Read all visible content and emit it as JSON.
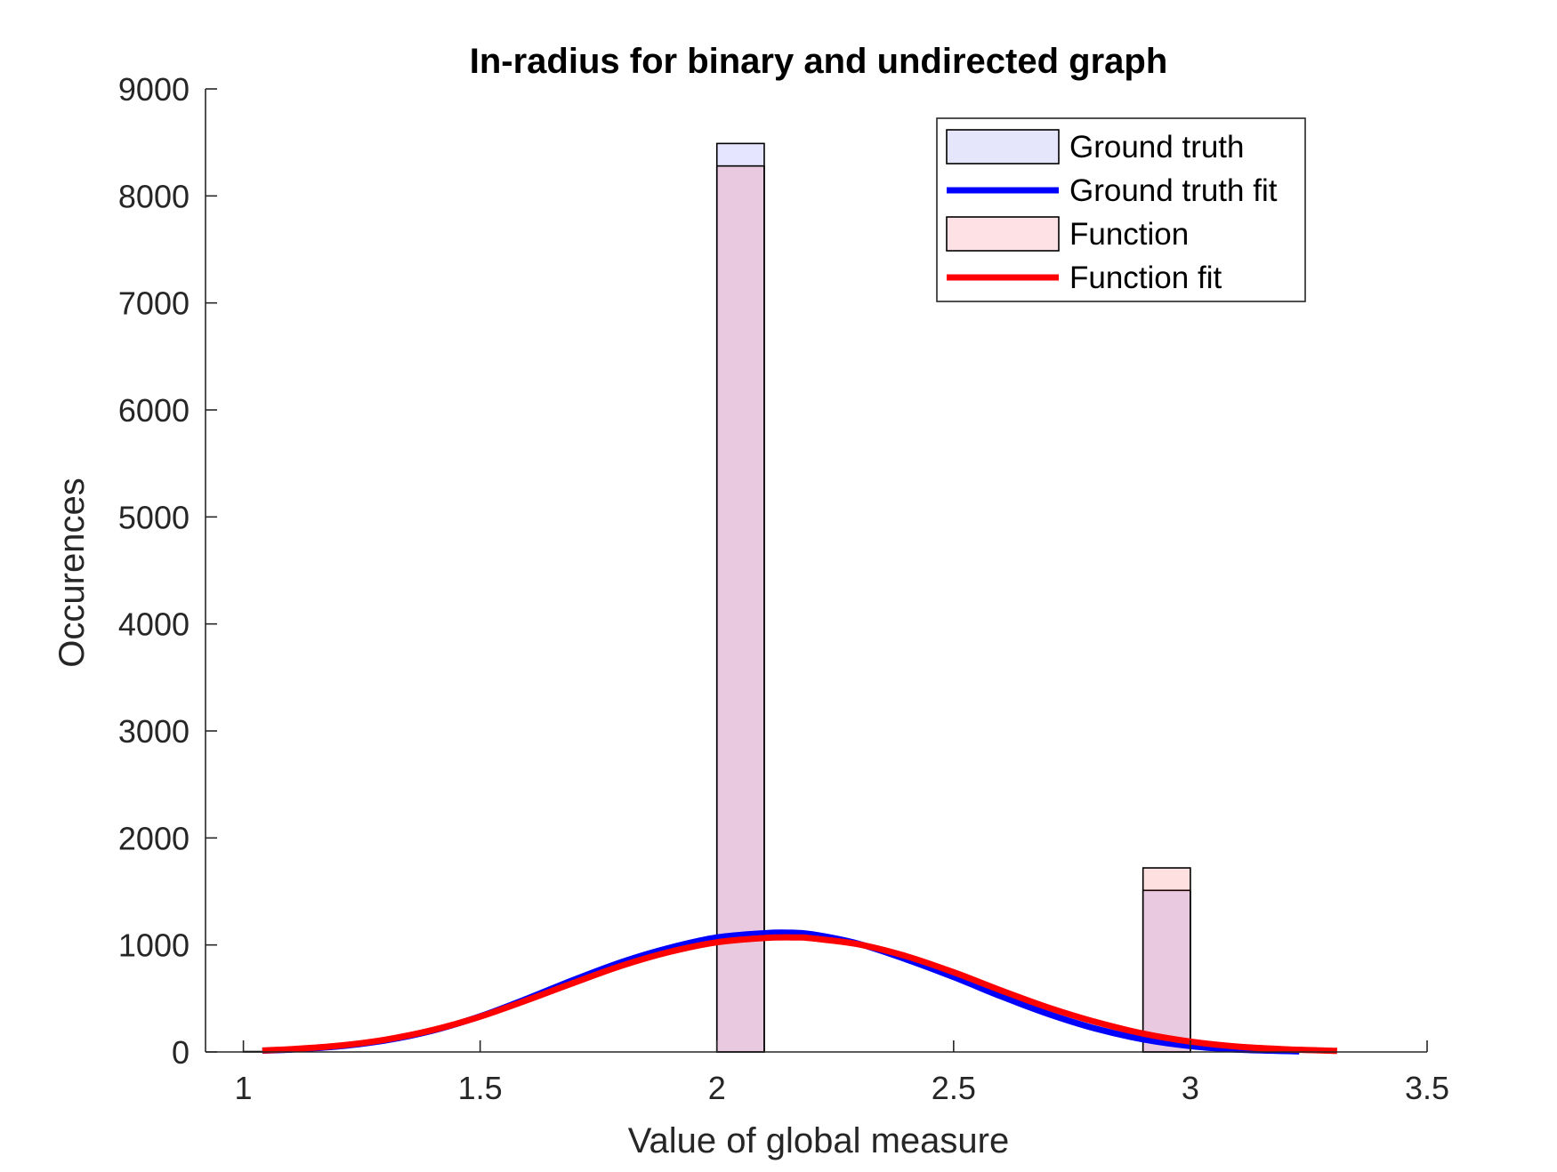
{
  "chart_data": {
    "type": "bar",
    "title": "In-radius for binary and undirected graph",
    "xlabel": "Value of global measure",
    "ylabel": "Occurences",
    "xlim": [
      0.92,
      3.5
    ],
    "ylim": [
      0,
      9000
    ],
    "xticks": [
      1,
      1.5,
      2,
      2.5,
      3,
      3.5
    ],
    "xtick_labels": [
      "1",
      "1.5",
      "2",
      "2.5",
      "3",
      "3.5"
    ],
    "yticks": [
      0,
      1000,
      2000,
      3000,
      4000,
      5000,
      6000,
      7000,
      8000,
      9000
    ],
    "ytick_labels": [
      "0",
      "1000",
      "2000",
      "3000",
      "4000",
      "5000",
      "6000",
      "7000",
      "8000",
      "9000"
    ],
    "grid": false,
    "legend_position": "top-right",
    "legend": [
      {
        "label": "Ground truth",
        "kind": "patch",
        "color": "#e5e5fb"
      },
      {
        "label": "Ground truth fit",
        "kind": "line",
        "color": "#0000ff"
      },
      {
        "label": "Function",
        "kind": "patch",
        "color": "#fde1e4"
      },
      {
        "label": "Function fit",
        "kind": "line",
        "color": "#ff0000"
      }
    ],
    "histograms": [
      {
        "name": "Ground truth",
        "fill": "#0000ff",
        "fill_opacity": 0.1,
        "bins": [
          {
            "x0": 1.0,
            "x1": 1.1,
            "value": 4
          },
          {
            "x0": 2.0,
            "x1": 2.1,
            "value": 8490
          },
          {
            "x0": 2.9,
            "x1": 3.0,
            "value": 1510
          }
        ]
      },
      {
        "name": "Function",
        "fill": "#ff0000",
        "fill_opacity": 0.12,
        "bins": [
          {
            "x0": 2.0,
            "x1": 2.1,
            "value": 8280
          },
          {
            "x0": 2.9,
            "x1": 3.0,
            "value": 1720
          }
        ]
      }
    ],
    "fits": [
      {
        "name": "Ground truth fit",
        "color": "#0000ff",
        "x": [
          1.04,
          1.1,
          1.2,
          1.3,
          1.4,
          1.5,
          1.6,
          1.7,
          1.8,
          1.9,
          2.0,
          2.1,
          2.15,
          2.2,
          2.3,
          2.4,
          2.5,
          2.6,
          2.7,
          2.8,
          2.9,
          3.0,
          3.1,
          3.23
        ],
        "y": [
          12,
          22,
          52,
          108,
          200,
          333,
          500,
          678,
          842,
          973,
          1070,
          1110,
          1115,
          1100,
          1010,
          865,
          700,
          520,
          355,
          218,
          118,
          55,
          22,
          5
        ]
      },
      {
        "name": "Function fit",
        "color": "#ff0000",
        "x": [
          1.04,
          1.1,
          1.2,
          1.3,
          1.4,
          1.5,
          1.6,
          1.7,
          1.8,
          1.9,
          2.0,
          2.1,
          2.17,
          2.2,
          2.3,
          2.4,
          2.5,
          2.6,
          2.7,
          2.8,
          2.9,
          3.0,
          3.1,
          3.2,
          3.31
        ],
        "y": [
          14,
          26,
          58,
          115,
          205,
          330,
          485,
          650,
          808,
          935,
          1025,
          1065,
          1070,
          1062,
          1005,
          895,
          745,
          575,
          415,
          280,
          172,
          97,
          50,
          25,
          10
        ]
      }
    ]
  }
}
